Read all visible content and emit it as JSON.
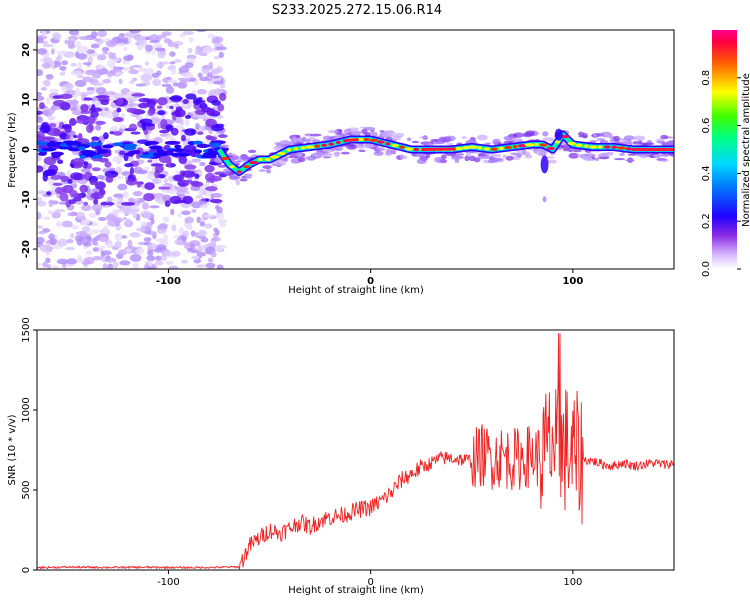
{
  "title": "S233.2025.272.15.06.R14",
  "chart_data": [
    {
      "type": "heatmap",
      "xlabel": "Height of straight line (km)",
      "ylabel": "Frequency (Hz)",
      "xlim": [
        -165,
        150
      ],
      "ylim": [
        -24,
        24
      ],
      "xticks": [
        -100,
        0,
        100
      ],
      "yticks": [
        -20,
        -10,
        0,
        10,
        20
      ],
      "colorbar": {
        "label": "Normalized spectral amplitude",
        "range": [
          0,
          1
        ],
        "ticks": [
          0.0,
          0.2,
          0.4,
          0.6,
          0.8
        ],
        "tick_labels": [
          "0.0",
          "0.2",
          "0.4",
          "0.6",
          "0.8"
        ],
        "colors": [
          "#ffffff",
          "#d4b8ff",
          "#8a2be2",
          "#2a00ff",
          "#00c8ff",
          "#00ff80",
          "#ffff00",
          "#ff4000",
          "#ff0080"
        ]
      },
      "ridge": {
        "x": [
          -75,
          -70,
          -65,
          -60,
          -55,
          -50,
          -45,
          -40,
          -30,
          -20,
          -10,
          0,
          10,
          20,
          30,
          40,
          50,
          60,
          70,
          80,
          85,
          90,
          95,
          100,
          110,
          120,
          130,
          140,
          150
        ],
        "y": [
          0,
          -3,
          -4.5,
          -3,
          -2,
          -2,
          -1,
          0,
          0.5,
          1,
          2,
          2,
          1,
          0,
          0,
          0,
          0.5,
          0,
          0.5,
          1,
          1,
          0,
          3,
          1,
          0.5,
          0.5,
          0,
          0,
          0
        ]
      }
    },
    {
      "type": "line",
      "xlabel": "Height of straight line (km)",
      "ylabel": "SNR (10 * v/v)",
      "xlim": [
        -165,
        150
      ],
      "ylim": [
        0,
        1500
      ],
      "xticks": [
        -100,
        0,
        100
      ],
      "yticks": [
        0,
        500,
        1000,
        1500
      ],
      "color": "#ee2222",
      "series": [
        {
          "x": [
            -165,
            -150,
            -130,
            -110,
            -90,
            -80,
            -70,
            -65,
            -60,
            -55,
            -50,
            -45,
            -40,
            -35,
            -30,
            -25,
            -20,
            -15,
            -10,
            -5,
            0,
            5,
            10,
            15,
            20,
            25,
            30,
            35,
            40,
            45,
            50,
            55,
            60,
            65,
            70,
            75,
            80,
            85,
            88,
            90,
            92,
            95,
            98,
            100,
            103,
            105,
            110,
            115,
            120,
            125,
            130,
            135,
            140,
            145,
            150
          ],
          "y": [
            15,
            18,
            16,
            17,
            15,
            16,
            18,
            20,
            150,
            200,
            250,
            230,
            260,
            300,
            270,
            310,
            330,
            340,
            360,
            380,
            390,
            430,
            480,
            560,
            600,
            640,
            670,
            700,
            700,
            690,
            680,
            720,
            700,
            710,
            690,
            700,
            720,
            700,
            760,
            820,
            700,
            750,
            760,
            700,
            700,
            690,
            680,
            660,
            650,
            670,
            650,
            660,
            670,
            660,
            665
          ]
        }
      ]
    }
  ]
}
